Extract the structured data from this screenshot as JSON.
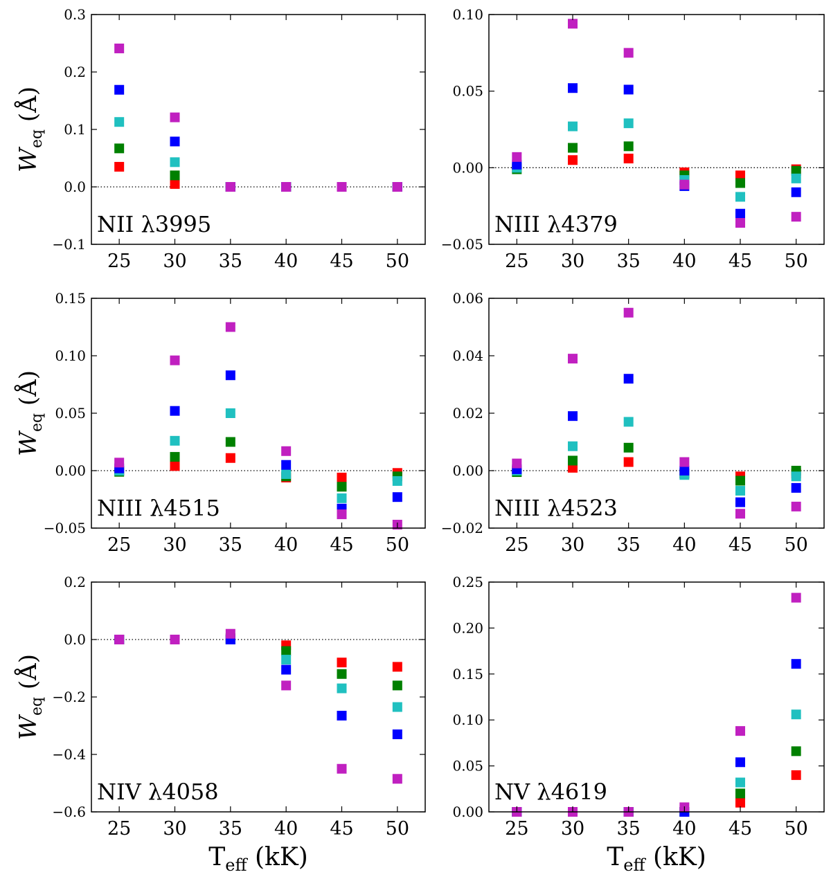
{
  "figure": {
    "ylabel_main": "W",
    "ylabel_sub": "eq",
    "ylabel_unit": " (Å)",
    "xlabel_main": "T",
    "xlabel_sub": "eff",
    "xlabel_unit": " (kK)"
  },
  "chart_data": [
    {
      "type": "scatter",
      "label": "NII λ3995",
      "ylim": [
        -0.1,
        0.3
      ],
      "yticks": [
        "−0.1",
        "0.0",
        "0.1",
        "0.2",
        "0.3"
      ],
      "ytick_values": [
        -0.1,
        0.0,
        0.1,
        0.2,
        0.3
      ],
      "xlim": [
        22.5,
        52.5
      ],
      "xticks": [
        "25",
        "30",
        "35",
        "40",
        "45",
        "50"
      ],
      "x": [
        25,
        30,
        35,
        40,
        45,
        50
      ],
      "zero_line": true,
      "series": [
        {
          "color": "#ff0000",
          "values": [
            0.035,
            0.005,
            0.0,
            0.0,
            0.0,
            0.0
          ]
        },
        {
          "color": "#008000",
          "values": [
            0.067,
            0.02,
            0.0,
            0.0,
            0.0,
            0.0
          ]
        },
        {
          "color": "#20c0c0",
          "values": [
            0.113,
            0.043,
            0.0,
            0.0,
            0.0,
            0.0
          ]
        },
        {
          "color": "#0000ff",
          "values": [
            0.169,
            0.079,
            0.0,
            0.0,
            0.0,
            0.0
          ]
        },
        {
          "color": "#c020c0",
          "values": [
            0.241,
            0.121,
            0.0,
            0.0,
            0.0,
            0.0
          ]
        }
      ]
    },
    {
      "type": "scatter",
      "label": "NIII λ4379",
      "ylim": [
        -0.05,
        0.1
      ],
      "yticks": [
        "−0.05",
        "0.00",
        "0.05",
        "0.10"
      ],
      "ytick_values": [
        -0.05,
        0.0,
        0.05,
        0.1
      ],
      "xlim": [
        22.5,
        52.5
      ],
      "xticks": [
        "25",
        "30",
        "35",
        "40",
        "45",
        "50"
      ],
      "x": [
        25,
        30,
        35,
        40,
        45,
        50
      ],
      "zero_line": true,
      "series": [
        {
          "color": "#ff0000",
          "values": [
            0.0,
            0.005,
            0.006,
            -0.003,
            -0.005,
            -0.001
          ]
        },
        {
          "color": "#008000",
          "values": [
            -0.001,
            0.013,
            0.014,
            -0.005,
            -0.01,
            -0.002
          ]
        },
        {
          "color": "#20c0c0",
          "values": [
            0.0,
            0.027,
            0.029,
            -0.008,
            -0.019,
            -0.007
          ]
        },
        {
          "color": "#0000ff",
          "values": [
            0.002,
            0.052,
            0.051,
            -0.012,
            -0.03,
            -0.016
          ]
        },
        {
          "color": "#c020c0",
          "values": [
            0.007,
            0.094,
            0.075,
            -0.011,
            -0.036,
            -0.032
          ]
        }
      ]
    },
    {
      "type": "scatter",
      "label": "NIII λ4515",
      "ylim": [
        -0.05,
        0.15
      ],
      "yticks": [
        "−0.05",
        "0.00",
        "0.05",
        "0.10",
        "0.15"
      ],
      "ytick_values": [
        -0.05,
        0.0,
        0.05,
        0.1,
        0.15
      ],
      "xlim": [
        22.5,
        52.5
      ],
      "xticks": [
        "25",
        "30",
        "35",
        "40",
        "45",
        "50"
      ],
      "x": [
        25,
        30,
        35,
        40,
        45,
        50
      ],
      "zero_line": true,
      "series": [
        {
          "color": "#ff0000",
          "values": [
            0.0,
            0.004,
            0.011,
            -0.006,
            -0.006,
            -0.002
          ]
        },
        {
          "color": "#008000",
          "values": [
            -0.001,
            0.012,
            0.025,
            -0.005,
            -0.014,
            -0.005
          ]
        },
        {
          "color": "#20c0c0",
          "values": [
            0.0,
            0.026,
            0.05,
            -0.003,
            -0.024,
            -0.009
          ]
        },
        {
          "color": "#0000ff",
          "values": [
            0.002,
            0.052,
            0.083,
            0.005,
            -0.033,
            -0.023
          ]
        },
        {
          "color": "#c020c0",
          "values": [
            0.007,
            0.096,
            0.125,
            0.017,
            -0.038,
            -0.047
          ]
        }
      ]
    },
    {
      "type": "scatter",
      "label": "NIII λ4523",
      "ylim": [
        -0.02,
        0.06
      ],
      "yticks": [
        "−0.02",
        "0.00",
        "0.02",
        "0.04",
        "0.06"
      ],
      "ytick_values": [
        -0.02,
        0.0,
        0.02,
        0.04,
        0.06
      ],
      "xlim": [
        22.5,
        52.5
      ],
      "xticks": [
        "25",
        "30",
        "35",
        "40",
        "45",
        "50"
      ],
      "x": [
        25,
        30,
        35,
        40,
        45,
        50
      ],
      "zero_line": true,
      "series": [
        {
          "color": "#ff0000",
          "values": [
            0.0,
            0.001,
            0.003,
            -0.001,
            -0.002,
            -0.001
          ]
        },
        {
          "color": "#008000",
          "values": [
            -0.0005,
            0.0035,
            0.008,
            -0.001,
            -0.0035,
            0.0
          ]
        },
        {
          "color": "#20c0c0",
          "values": [
            0.0,
            0.0085,
            0.017,
            -0.0015,
            -0.007,
            -0.002
          ]
        },
        {
          "color": "#0000ff",
          "values": [
            0.0005,
            0.019,
            0.032,
            0.0,
            -0.011,
            -0.006
          ]
        },
        {
          "color": "#c020c0",
          "values": [
            0.0025,
            0.039,
            0.055,
            0.003,
            -0.015,
            -0.0125
          ]
        }
      ]
    },
    {
      "type": "scatter",
      "label": "NIV λ4058",
      "ylim": [
        -0.6,
        0.2
      ],
      "yticks": [
        "−0.6",
        "−0.4",
        "−0.2",
        "0.0",
        "0.2"
      ],
      "ytick_values": [
        -0.6,
        -0.4,
        -0.2,
        0.0,
        0.2
      ],
      "xlim": [
        22.5,
        52.5
      ],
      "xticks": [
        "25",
        "30",
        "35",
        "40",
        "45",
        "50"
      ],
      "x": [
        25,
        30,
        35,
        40,
        45,
        50
      ],
      "zero_line": true,
      "series": [
        {
          "color": "#ff0000",
          "values": [
            0.0,
            0.0,
            0.0,
            -0.02,
            -0.08,
            -0.095
          ]
        },
        {
          "color": "#008000",
          "values": [
            0.0,
            0.0,
            0.005,
            -0.04,
            -0.12,
            -0.16
          ]
        },
        {
          "color": "#20c0c0",
          "values": [
            0.0,
            0.0,
            0.0,
            -0.07,
            -0.17,
            -0.235
          ]
        },
        {
          "color": "#0000ff",
          "values": [
            0.0,
            0.0,
            0.0,
            -0.105,
            -0.265,
            -0.33
          ]
        },
        {
          "color": "#c020c0",
          "values": [
            0.0,
            0.0,
            0.02,
            -0.16,
            -0.45,
            -0.485
          ]
        }
      ]
    },
    {
      "type": "scatter",
      "label": "NV λ4619",
      "ylim": [
        0.0,
        0.25
      ],
      "yticks": [
        "0.00",
        "0.05",
        "0.10",
        "0.15",
        "0.20",
        "0.25"
      ],
      "ytick_values": [
        0.0,
        0.05,
        0.1,
        0.15,
        0.2,
        0.25
      ],
      "xlim": [
        22.5,
        52.5
      ],
      "xticks": [
        "25",
        "30",
        "35",
        "40",
        "45",
        "50"
      ],
      "x": [
        25,
        30,
        35,
        40,
        45,
        50
      ],
      "zero_line": false,
      "series": [
        {
          "color": "#ff0000",
          "values": [
            0.0,
            0.0,
            0.0,
            0.0,
            0.01,
            0.04
          ]
        },
        {
          "color": "#008000",
          "values": [
            0.0,
            0.0,
            0.0,
            0.0,
            0.02,
            0.066
          ]
        },
        {
          "color": "#20c0c0",
          "values": [
            0.0,
            0.0,
            0.0,
            0.0,
            0.032,
            0.106
          ]
        },
        {
          "color": "#0000ff",
          "values": [
            0.0,
            0.0,
            0.0,
            0.0,
            0.054,
            0.161
          ]
        },
        {
          "color": "#c020c0",
          "values": [
            0.0,
            0.0,
            0.0,
            0.005,
            0.088,
            0.233
          ]
        }
      ]
    }
  ]
}
